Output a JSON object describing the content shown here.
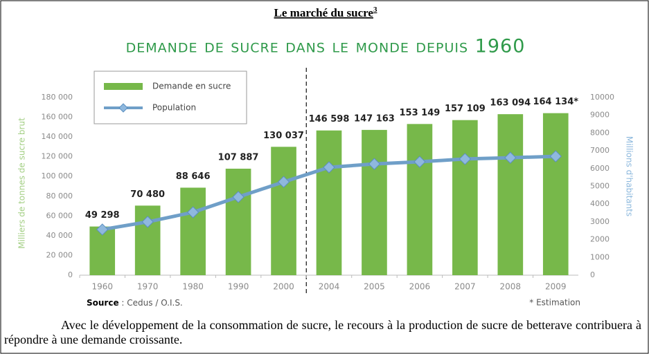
{
  "header": {
    "title": "Le marché du sucre",
    "footnote_ref": "3"
  },
  "chart_data": {
    "type": "bar",
    "title": "Demande de sucre dans le monde depuis 1960",
    "categories": [
      "1960",
      "1970",
      "1980",
      "1990",
      "2000",
      "2004",
      "2005",
      "2006",
      "2007",
      "2008",
      "2009"
    ],
    "series": [
      {
        "name": "Demande en sucre",
        "type": "bar",
        "color": "#77b84a",
        "values": [
          49298,
          70480,
          88646,
          107887,
          130037,
          146598,
          147163,
          153149,
          157109,
          163094,
          164134
        ],
        "value_labels": [
          "49 298",
          "70 480",
          "88 646",
          "107 887",
          "130 037",
          "146 598",
          "147 163",
          "153 149",
          "157 109",
          "163 094",
          "164 134*"
        ]
      },
      {
        "name": "Population",
        "type": "line",
        "axis": "y2",
        "color": "#6f9fc8",
        "values": [
          2570,
          3000,
          3540,
          4400,
          5250,
          6070,
          6260,
          6380,
          6540,
          6610,
          6690
        ]
      }
    ],
    "ylabel": "Milliers de tonnes de sucre brut",
    "y2label": "Millions d'habitants",
    "ylim": [
      0,
      180000
    ],
    "yticks": [
      0,
      {
        "value": 20000,
        "label": "20 000"
      },
      {
        "value": 40000,
        "label": "40 000"
      },
      {
        "value": 60000,
        "label": "60 000"
      },
      {
        "value": 80000,
        "label": "80 000"
      },
      {
        "value": 100000,
        "label": "100 000"
      },
      {
        "value": 120000,
        "label": "120 000"
      },
      {
        "value": 140000,
        "label": "140 000"
      },
      {
        "value": 160000,
        "label": "160 000"
      },
      {
        "value": 180000,
        "label": "180 000"
      }
    ],
    "y2lim": [
      0,
      10000
    ],
    "y2ticks": [
      0,
      1000,
      2000,
      3000,
      4000,
      5000,
      6000,
      7000,
      8000,
      9000,
      10000
    ],
    "source_label": "Source",
    "source_text": " : Cedus / O.I.S.",
    "note": "* Estimation",
    "legend": "upper left"
  },
  "paragraph": "Avec le développement de la consommation de sucre, le recours à la production de sucre de betterave contribuera à répondre à une demande croissante."
}
